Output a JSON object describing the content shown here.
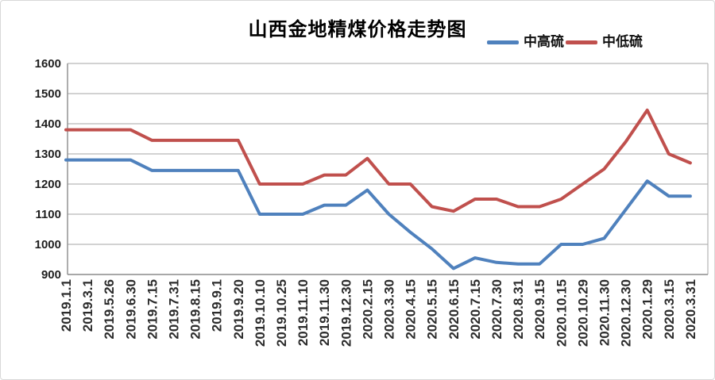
{
  "chart_data": {
    "type": "line",
    "title": "山西金地精煤价格走势图",
    "categories": [
      "2019.1.1",
      "2019.3.1",
      "2019.5.26",
      "2019.6.30",
      "2019.7.15",
      "2019.7.31",
      "2019.8.15",
      "2019.9.1",
      "2019.9.20",
      "2019.10.10",
      "2019.10.25",
      "2019.11.10",
      "2019.11.30",
      "2019.12.30",
      "2020.2.15",
      "2020.3.30",
      "2020.4.15",
      "2020.5.15",
      "2020.6.15",
      "2020.7.15",
      "2020.7.30",
      "2020.8.31",
      "2020.9.15",
      "2020.10.15",
      "2020.10.29",
      "2020.11.30",
      "2020.12.30",
      "2020.1.29",
      "2020.3.15",
      "2020.3.31"
    ],
    "series": [
      {
        "name": "中高硫",
        "color": "#4F81BD",
        "values": [
          1280,
          1280,
          1280,
          1280,
          1245,
          1245,
          1245,
          1245,
          1245,
          1100,
          1100,
          1100,
          1130,
          1130,
          1180,
          1100,
          1040,
          985,
          920,
          955,
          940,
          935,
          935,
          1000,
          1000,
          1020,
          1115,
          1210,
          1160,
          1160
        ]
      },
      {
        "name": "中低硫",
        "color": "#C0504D",
        "values": [
          1380,
          1380,
          1380,
          1380,
          1345,
          1345,
          1345,
          1345,
          1345,
          1200,
          1200,
          1200,
          1230,
          1230,
          1285,
          1200,
          1200,
          1125,
          1110,
          1150,
          1150,
          1125,
          1125,
          1150,
          1200,
          1250,
          1340,
          1445,
          1300,
          1270
        ]
      }
    ],
    "ylim": [
      900,
      1600
    ],
    "yticks": [
      900,
      1000,
      1100,
      1200,
      1300,
      1400,
      1500,
      1600
    ],
    "grid": true,
    "legend_position": "top-right",
    "grid_color": "#a6a6a6",
    "axis_color": "#8c8c8c"
  }
}
